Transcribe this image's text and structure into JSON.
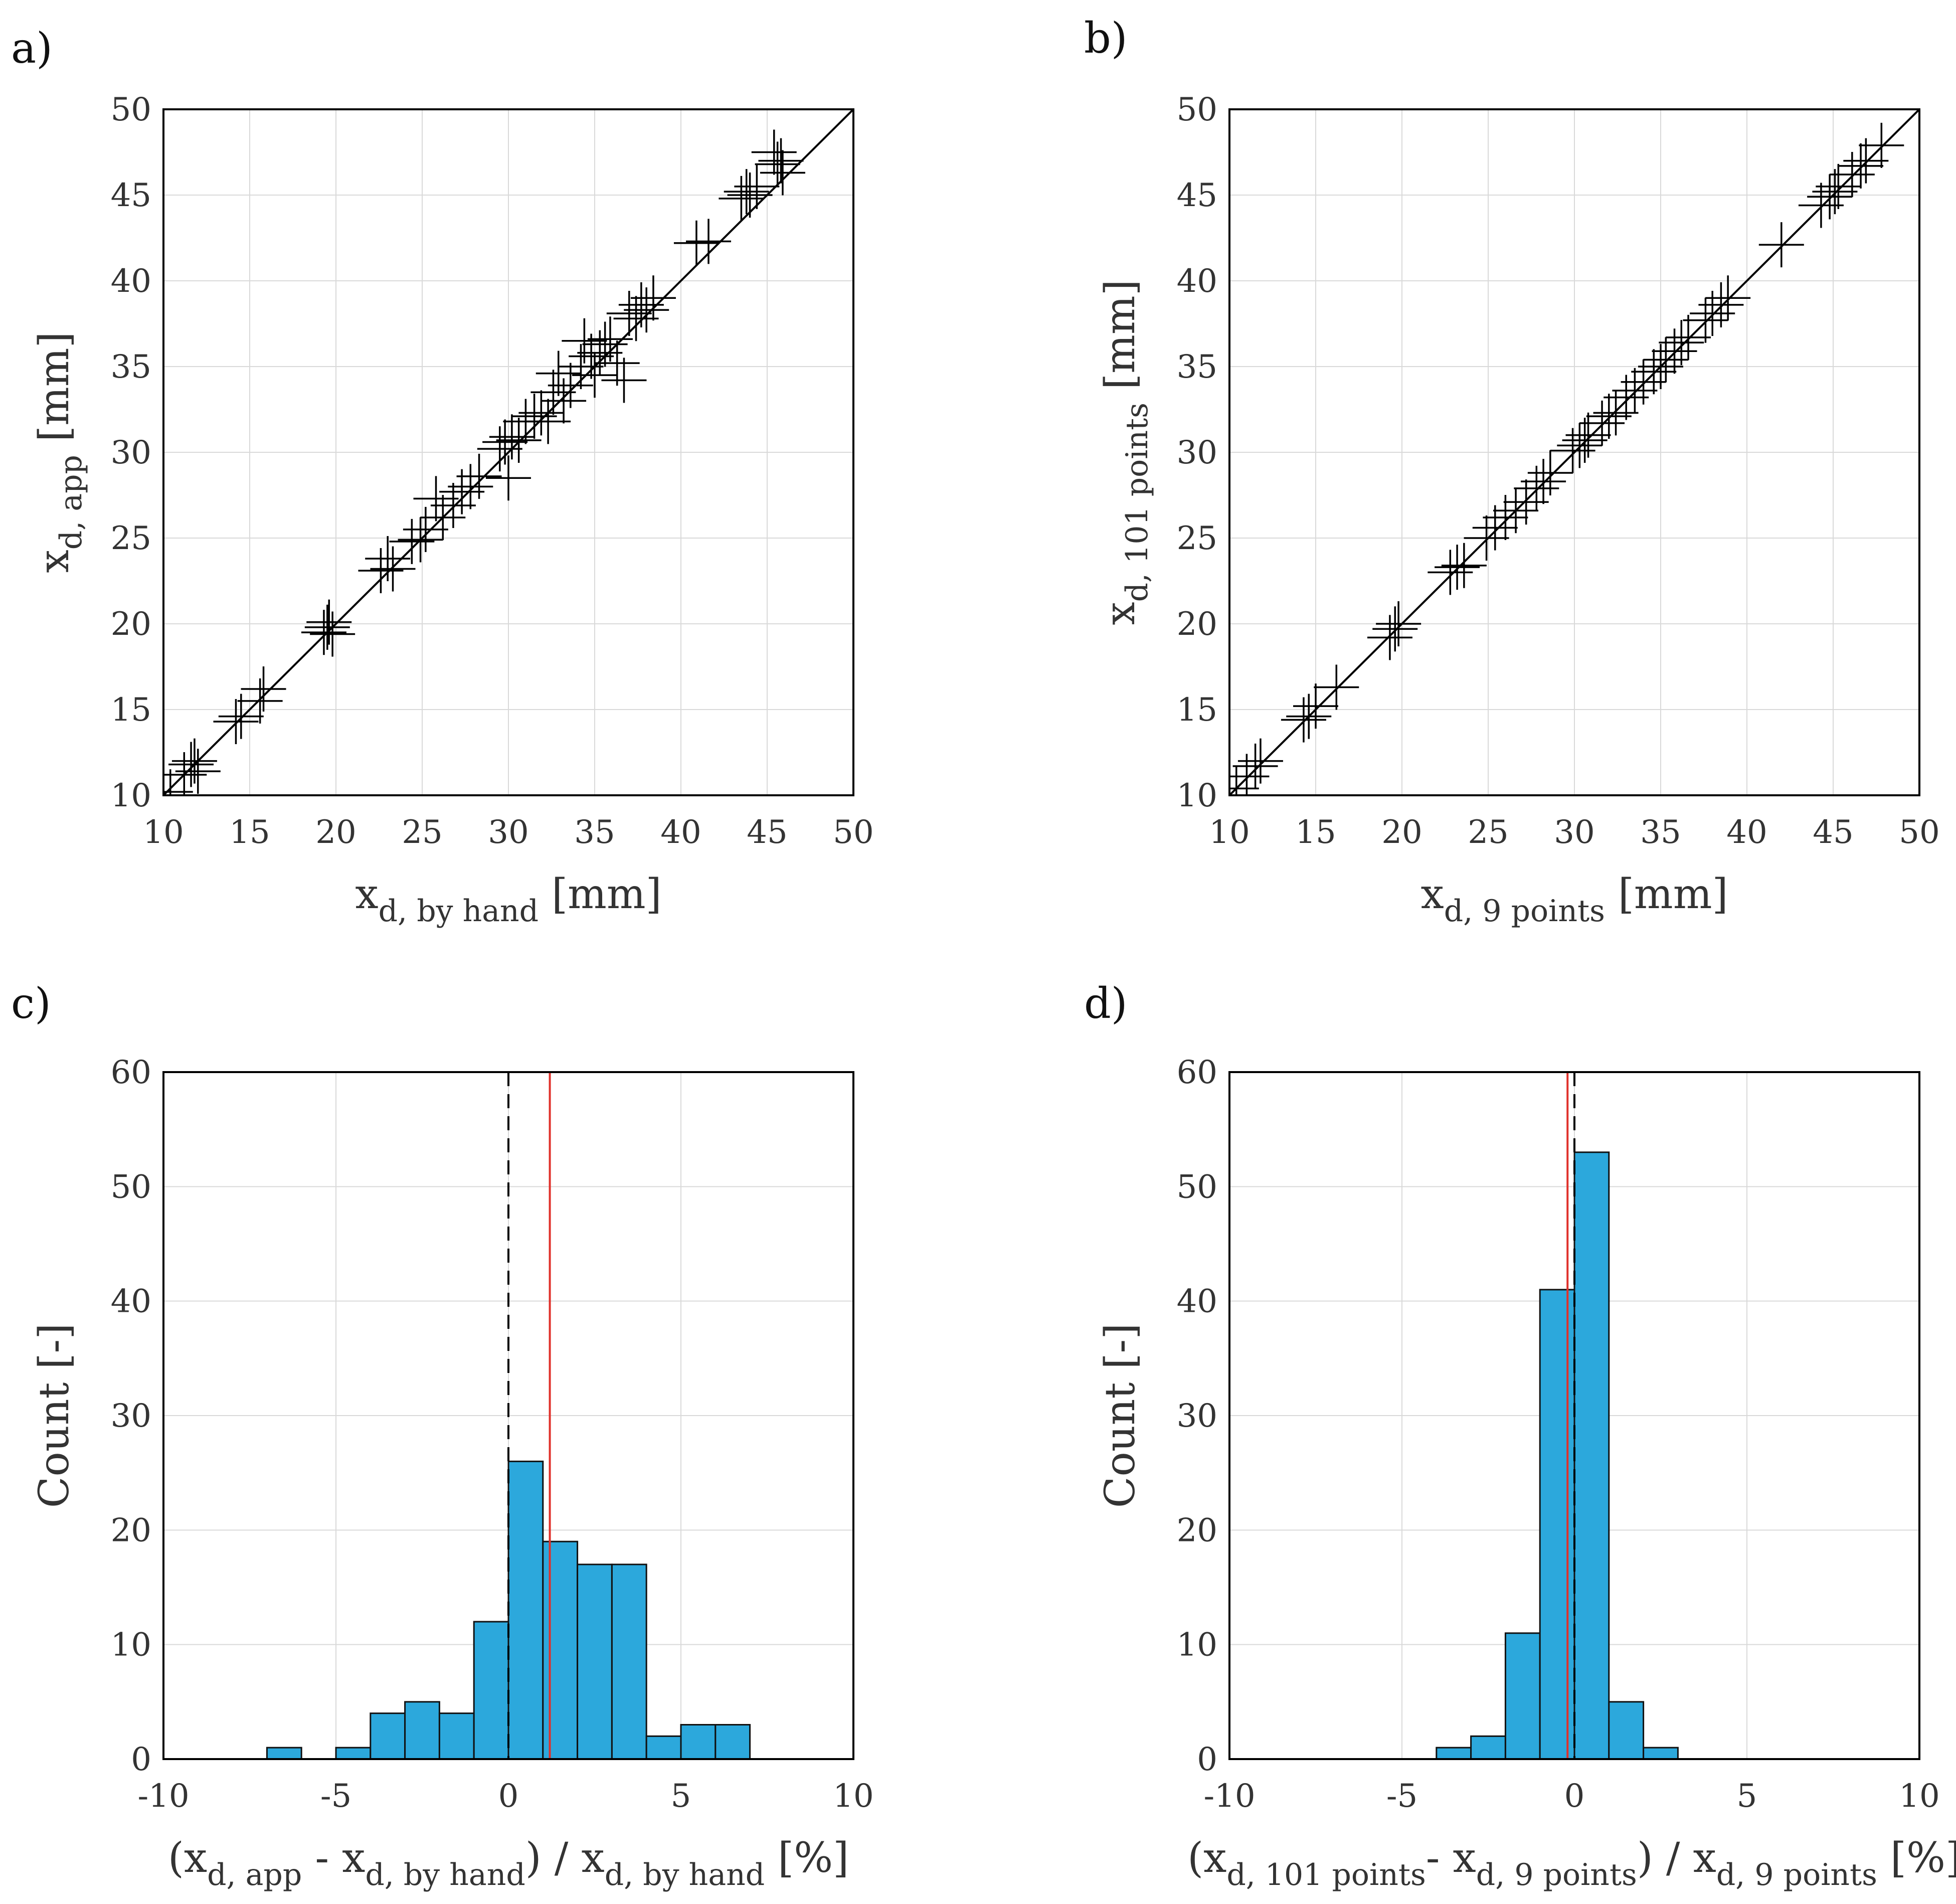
{
  "colors": {
    "bar_fill": "#2ca8dc",
    "bar_edge": "#111111",
    "grid": "#d9d9d9",
    "marker": "#000000",
    "mean_line": "#e0312b",
    "zero_line": "#000000"
  },
  "chart_data": [
    {
      "id": "a",
      "panel_label": "a)",
      "type": "scatter",
      "marker": "plus",
      "x_ticks": [
        "10",
        "15",
        "20",
        "25",
        "30",
        "35",
        "40",
        "45",
        "50"
      ],
      "y_ticks": [
        "10",
        "15",
        "20",
        "25",
        "30",
        "35",
        "40",
        "45",
        "50"
      ],
      "xlim": [
        10,
        50
      ],
      "ylim": [
        10,
        50
      ],
      "grid": true,
      "xlabel": {
        "main": "x",
        "sub": "d, by hand",
        "unit": " [mm]"
      },
      "ylabel": {
        "main": "x",
        "sub": "d, app",
        "unit": " [mm]"
      },
      "reference_line": "y = x",
      "points": [
        [
          10.4,
          10.2
        ],
        [
          11.2,
          11.2
        ],
        [
          11.6,
          11.8
        ],
        [
          11.8,
          12.0
        ],
        [
          12.0,
          11.4
        ],
        [
          14.2,
          14.3
        ],
        [
          14.5,
          14.6
        ],
        [
          15.8,
          16.2
        ],
        [
          15.6,
          15.5
        ],
        [
          19.3,
          19.5
        ],
        [
          19.6,
          20.1
        ],
        [
          19.8,
          19.4
        ],
        [
          19.5,
          19.8
        ],
        [
          22.6,
          23.1
        ],
        [
          23.0,
          23.8
        ],
        [
          23.3,
          23.2
        ],
        [
          24.4,
          24.8
        ],
        [
          24.9,
          24.9
        ],
        [
          25.2,
          25.5
        ],
        [
          25.8,
          27.3
        ],
        [
          26.2,
          26.2
        ],
        [
          26.8,
          26.9
        ],
        [
          27.3,
          27.7
        ],
        [
          27.8,
          28.0
        ],
        [
          28.3,
          28.6
        ],
        [
          29.5,
          30.2
        ],
        [
          29.8,
          30.6
        ],
        [
          30.0,
          28.5
        ],
        [
          30.2,
          30.9
        ],
        [
          30.6,
          30.7
        ],
        [
          31.0,
          31.8
        ],
        [
          31.5,
          32.1
        ],
        [
          31.9,
          32.3
        ],
        [
          32.3,
          31.8
        ],
        [
          32.6,
          33.5
        ],
        [
          32.9,
          34.6
        ],
        [
          33.2,
          33.0
        ],
        [
          33.6,
          33.9
        ],
        [
          34.2,
          35.0
        ],
        [
          34.4,
          36.5
        ],
        [
          34.8,
          35.6
        ],
        [
          35.0,
          34.5
        ],
        [
          35.3,
          35.8
        ],
        [
          35.6,
          36.3
        ],
        [
          35.9,
          36.6
        ],
        [
          36.3,
          35.2
        ],
        [
          36.7,
          34.2
        ],
        [
          37.0,
          38.1
        ],
        [
          37.4,
          37.8
        ],
        [
          37.7,
          38.6
        ],
        [
          38.0,
          38.3
        ],
        [
          38.4,
          39.0
        ],
        [
          40.9,
          42.2
        ],
        [
          41.6,
          42.3
        ],
        [
          43.5,
          44.8
        ],
        [
          43.8,
          45.2
        ],
        [
          44.0,
          45.0
        ],
        [
          44.4,
          45.5
        ],
        [
          45.4,
          47.5
        ],
        [
          45.6,
          46.8
        ],
        [
          45.9,
          46.3
        ],
        [
          45.8,
          47.0
        ]
      ]
    },
    {
      "id": "b",
      "panel_label": "b)",
      "type": "scatter",
      "marker": "plus",
      "x_ticks": [
        "10",
        "15",
        "20",
        "25",
        "30",
        "35",
        "40",
        "45",
        "50"
      ],
      "y_ticks": [
        "10",
        "15",
        "20",
        "25",
        "30",
        "35",
        "40",
        "45",
        "50"
      ],
      "xlim": [
        10,
        50
      ],
      "ylim": [
        10,
        50
      ],
      "grid": true,
      "xlabel": {
        "main": "x",
        "sub": "d, 9 points",
        "unit": " [mm]"
      },
      "ylabel": {
        "main": "x",
        "sub": "d, 101 points",
        "unit": " [mm]"
      },
      "reference_line": "y = x",
      "points": [
        [
          10.4,
          10.4
        ],
        [
          11.0,
          11.1
        ],
        [
          11.5,
          11.7
        ],
        [
          11.8,
          12.0
        ],
        [
          14.3,
          14.4
        ],
        [
          14.6,
          14.6
        ],
        [
          15.0,
          15.2
        ],
        [
          16.2,
          16.3
        ],
        [
          19.3,
          19.2
        ],
        [
          19.6,
          19.7
        ],
        [
          19.8,
          20.0
        ],
        [
          22.8,
          23.0
        ],
        [
          23.2,
          23.3
        ],
        [
          23.6,
          23.4
        ],
        [
          24.9,
          25.0
        ],
        [
          25.4,
          25.6
        ],
        [
          26.0,
          26.2
        ],
        [
          26.6,
          26.6
        ],
        [
          27.2,
          27.1
        ],
        [
          27.8,
          27.9
        ],
        [
          28.2,
          28.3
        ],
        [
          28.6,
          28.8
        ],
        [
          29.9,
          30.1
        ],
        [
          30.3,
          30.4
        ],
        [
          30.6,
          30.7
        ],
        [
          30.8,
          31.0
        ],
        [
          31.6,
          31.7
        ],
        [
          32.0,
          32.1
        ],
        [
          32.4,
          32.3
        ],
        [
          33.0,
          33.2
        ],
        [
          33.5,
          33.6
        ],
        [
          34.0,
          34.1
        ],
        [
          34.6,
          34.7
        ],
        [
          35.0,
          35.0
        ],
        [
          35.3,
          35.4
        ],
        [
          35.8,
          35.9
        ],
        [
          36.2,
          36.4
        ],
        [
          36.6,
          36.7
        ],
        [
          37.6,
          37.7
        ],
        [
          38.0,
          38.1
        ],
        [
          38.5,
          38.6
        ],
        [
          38.9,
          39.0
        ],
        [
          42.0,
          42.1
        ],
        [
          44.3,
          44.4
        ],
        [
          44.8,
          44.9
        ],
        [
          45.1,
          45.2
        ],
        [
          45.3,
          45.5
        ],
        [
          46.1,
          46.2
        ],
        [
          46.6,
          46.7
        ],
        [
          46.9,
          47.0
        ],
        [
          47.8,
          47.9
        ]
      ]
    },
    {
      "id": "c",
      "panel_label": "c)",
      "type": "bar",
      "x_ticks": [
        "-10",
        "-5",
        "0",
        "5",
        "10"
      ],
      "y_ticks": [
        "0",
        "10",
        "20",
        "30",
        "40",
        "50",
        "60"
      ],
      "xlim": [
        -10,
        10
      ],
      "ylim": [
        0,
        60
      ],
      "grid": true,
      "xlabel": {
        "parts": [
          {
            "t": "(x"
          },
          {
            "t": "d, app",
            "sub": true
          },
          {
            "t": " - x"
          },
          {
            "t": "d, by hand",
            "sub": true
          },
          {
            "t": ") / x"
          },
          {
            "t": "d, by hand",
            "sub": true
          },
          {
            "t": " [%]"
          }
        ]
      },
      "ylabel": {
        "main": "Count [-]"
      },
      "bin_edges": [
        -7,
        -6,
        -5,
        -4,
        -3,
        -2,
        -1,
        0,
        1,
        2,
        3,
        4,
        5,
        6,
        7
      ],
      "counts": [
        1,
        0,
        1,
        4,
        5,
        4,
        12,
        26,
        19,
        17,
        17,
        2,
        3,
        3
      ],
      "zero_line_x": 0,
      "mean_x": 1.2
    },
    {
      "id": "d",
      "panel_label": "d)",
      "type": "bar",
      "x_ticks": [
        "-10",
        "-5",
        "0",
        "5",
        "10"
      ],
      "y_ticks": [
        "0",
        "10",
        "20",
        "30",
        "40",
        "50",
        "60"
      ],
      "xlim": [
        -10,
        10
      ],
      "ylim": [
        0,
        60
      ],
      "grid": true,
      "xlabel": {
        "parts": [
          {
            "t": "(x"
          },
          {
            "t": "d, 101 points",
            "sub": true
          },
          {
            "t": "- x"
          },
          {
            "t": "d, 9 points",
            "sub": true
          },
          {
            "t": ") / x"
          },
          {
            "t": "d, 9 points",
            "sub": true
          },
          {
            "t": " [%]"
          }
        ]
      },
      "ylabel": {
        "main": "Count [-]"
      },
      "bin_edges": [
        -4,
        -3,
        -2,
        -1,
        0,
        1,
        2,
        3
      ],
      "counts": [
        1,
        2,
        11,
        41,
        53,
        5,
        1
      ],
      "zero_line_x": 0,
      "mean_x": -0.2
    }
  ]
}
